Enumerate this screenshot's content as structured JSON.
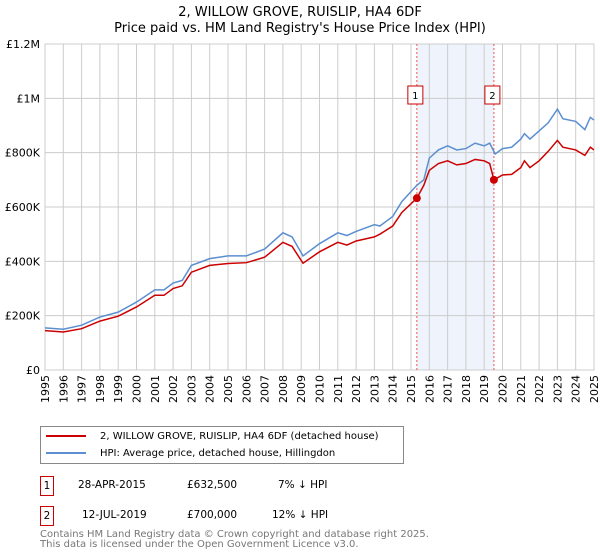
{
  "chart_data": {
    "type": "line",
    "title": "2, WILLOW GROVE, RUISLIP, HA4 6DF",
    "subtitle": "Price paid vs. HM Land Registry's House Price Index (HPI)",
    "xlim": [
      1995,
      2025
    ],
    "ylim": [
      0,
      1200000
    ],
    "yticks": [
      {
        "v": 0,
        "label": "£0"
      },
      {
        "v": 200000,
        "label": "£200K"
      },
      {
        "v": 400000,
        "label": "£400K"
      },
      {
        "v": 600000,
        "label": "£600K"
      },
      {
        "v": 800000,
        "label": "£800K"
      },
      {
        "v": 1000000,
        "label": "£1M"
      },
      {
        "v": 1200000,
        "label": "£1.2M"
      }
    ],
    "xticks": [
      "1995",
      "1996",
      "1997",
      "1998",
      "1999",
      "2000",
      "2001",
      "2002",
      "2003",
      "2004",
      "2005",
      "2006",
      "2007",
      "2008",
      "2009",
      "2010",
      "2011",
      "2012",
      "2013",
      "2014",
      "2015",
      "2016",
      "2017",
      "2018",
      "2019",
      "2020",
      "2021",
      "2022",
      "2023",
      "2024",
      "2025"
    ],
    "grid": true,
    "shaded_range": [
      2015.32,
      2019.53
    ],
    "series": [
      {
        "name": "2, WILLOW GROVE, RUISLIP, HA4 6DF (detached house)",
        "color": "#cc0000",
        "x": [
          1995,
          1996,
          1997,
          1998,
          1999,
          2000,
          2001,
          2001.5,
          2002,
          2002.5,
          2003,
          2004,
          2005,
          2006,
          2007,
          2008,
          2008.5,
          2009.1,
          2010,
          2011,
          2011.5,
          2012,
          2013,
          2013.3,
          2014,
          2014.5,
          2015.32,
          2015.7,
          2016,
          2016.5,
          2017,
          2017.5,
          2018,
          2018.5,
          2019,
          2019.3,
          2019.53,
          2020,
          2020.5,
          2021,
          2021.2,
          2021.5,
          2022,
          2022.5,
          2023,
          2023.3,
          2024,
          2024.5,
          2024.8,
          2025
        ],
        "y": [
          145000,
          140000,
          152000,
          180000,
          198000,
          232000,
          275000,
          275000,
          300000,
          310000,
          360000,
          385000,
          392000,
          395000,
          415000,
          470000,
          455000,
          393000,
          435000,
          470000,
          460000,
          475000,
          490000,
          500000,
          530000,
          580000,
          632500,
          680000,
          735000,
          760000,
          770000,
          755000,
          760000,
          775000,
          770000,
          760000,
          700000,
          718000,
          720000,
          745000,
          770000,
          745000,
          770000,
          805000,
          845000,
          820000,
          810000,
          790000,
          820000,
          810000
        ]
      },
      {
        "name": "HPI: Average price, detached house, Hillingdon",
        "color": "#5b8fd0",
        "x": [
          1995,
          1996,
          1997,
          1998,
          1999,
          2000,
          2001,
          2001.5,
          2002,
          2002.5,
          2003,
          2004,
          2005,
          2006,
          2007,
          2008,
          2008.5,
          2009.1,
          2010,
          2011,
          2011.5,
          2012,
          2013,
          2013.3,
          2014,
          2014.5,
          2015.32,
          2015.7,
          2016,
          2016.5,
          2017,
          2017.5,
          2018,
          2018.5,
          2019,
          2019.3,
          2019.6,
          2020,
          2020.5,
          2021,
          2021.2,
          2021.5,
          2022,
          2022.5,
          2023,
          2023.3,
          2024,
          2024.5,
          2024.8,
          2025
        ],
        "y": [
          155000,
          150000,
          165000,
          195000,
          213000,
          250000,
          295000,
          295000,
          320000,
          330000,
          385000,
          410000,
          420000,
          420000,
          445000,
          505000,
          490000,
          420000,
          465000,
          505000,
          495000,
          510000,
          535000,
          530000,
          565000,
          620000,
          680000,
          700000,
          780000,
          810000,
          825000,
          810000,
          815000,
          835000,
          825000,
          835000,
          795000,
          815000,
          820000,
          850000,
          870000,
          850000,
          880000,
          910000,
          960000,
          925000,
          915000,
          885000,
          930000,
          920000
        ]
      }
    ],
    "sales": [
      {
        "label": "1",
        "x": 2015.32,
        "y": 632500
      },
      {
        "label": "2",
        "x": 2019.53,
        "y": 700000
      }
    ]
  },
  "legend": {
    "red": "2, WILLOW GROVE, RUISLIP, HA4 6DF (detached house)",
    "blue": "HPI: Average price, detached house, Hillingdon"
  },
  "transactions": [
    {
      "num": "1",
      "date": "28-APR-2015",
      "price": "£632,500",
      "hpi": "7% ↓ HPI"
    },
    {
      "num": "2",
      "date": "12-JUL-2019",
      "price": "£700,000",
      "hpi": "12% ↓ HPI"
    }
  ],
  "footer": [
    "Contains HM Land Registry data © Crown copyright and database right 2025.",
    "This data is licensed under the Open Government Licence v3.0."
  ]
}
